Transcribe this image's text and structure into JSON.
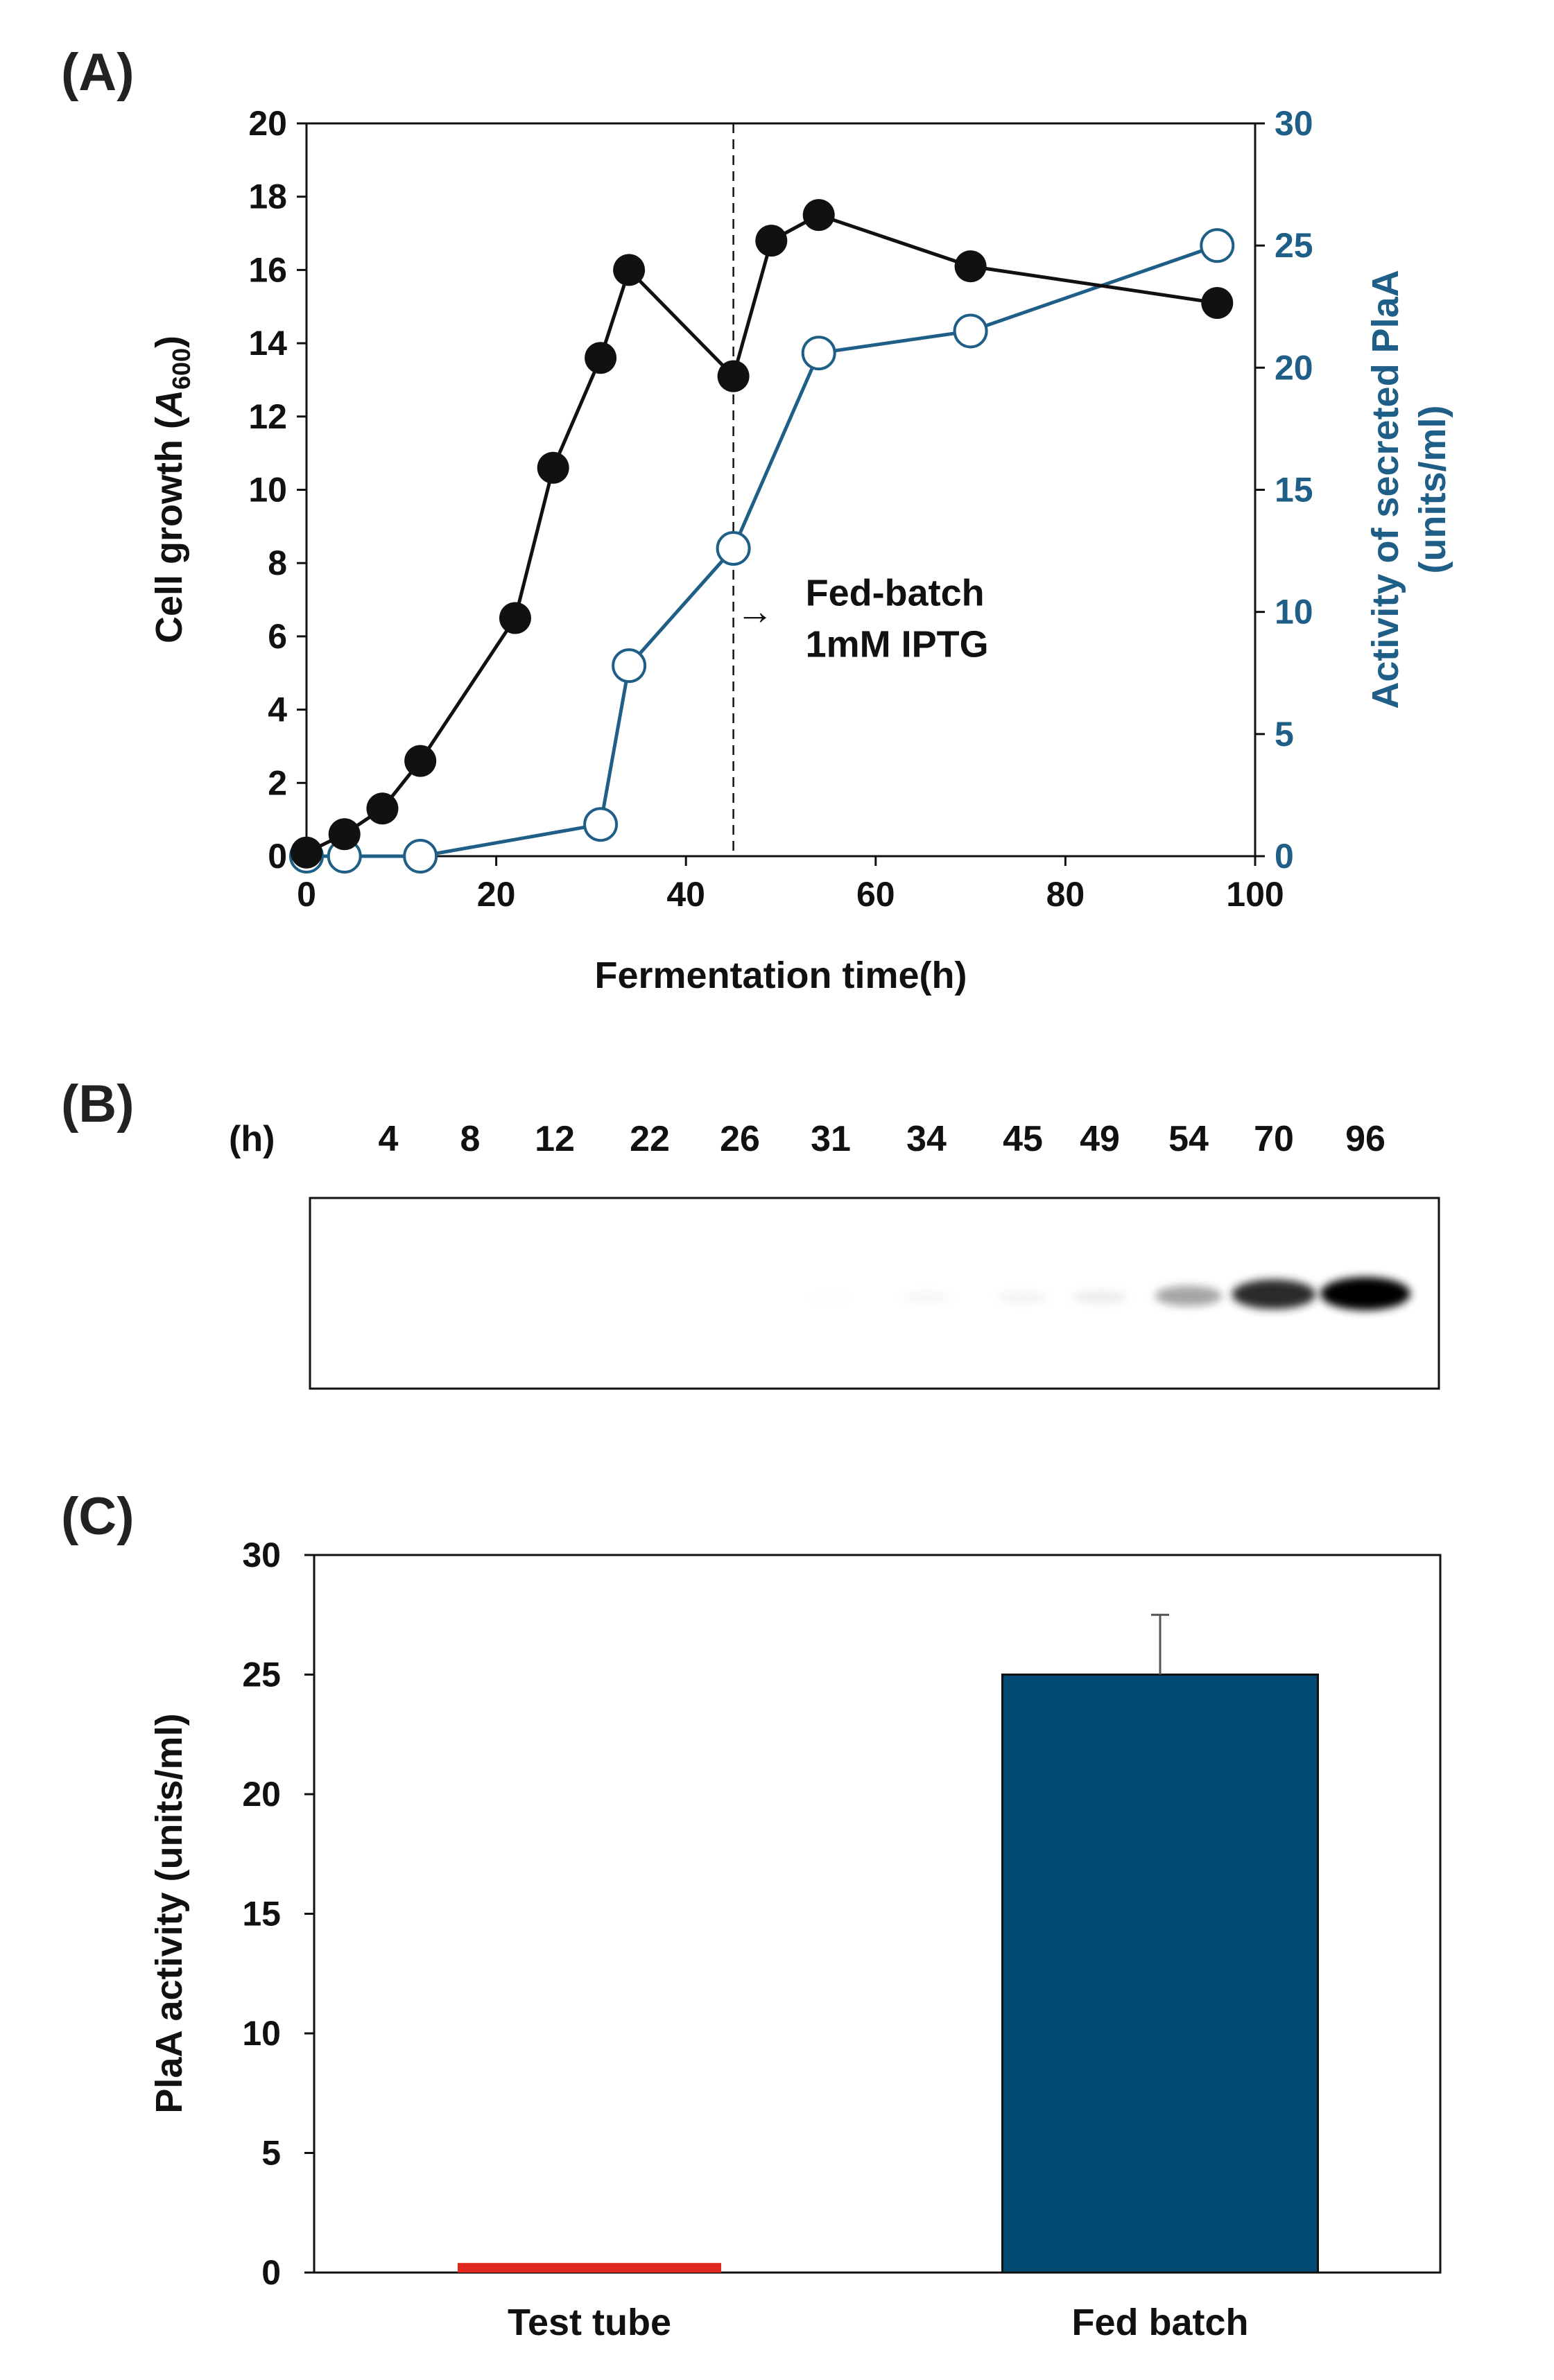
{
  "panels": {
    "a": "(A)",
    "b": "(B)",
    "c": "(C)"
  },
  "colors": {
    "growth": "#111111",
    "activity": "#1f5f87",
    "bar_fed": "#034a75",
    "bar_test": "#e0281e"
  },
  "chart_data": [
    {
      "type": "line",
      "panel": "(A)",
      "title": "",
      "xlabel": "Fermentation time(h)",
      "ylabel_left": "Cell growth (A600)",
      "ylabel_left_parts": {
        "main": "Cell growth (",
        "italic": "A",
        "sub": "600",
        "end": ")"
      },
      "ylabel_right_line1": "Activity of secreted PlaA",
      "ylabel_right_line2": "(units/ml)",
      "xlim": [
        0,
        100
      ],
      "ylim_left": [
        0,
        20
      ],
      "ylim_right": [
        0,
        30
      ],
      "xticks": [
        0,
        20,
        40,
        60,
        80,
        100
      ],
      "yticks_left": [
        0,
        2,
        4,
        6,
        8,
        10,
        12,
        14,
        16,
        18,
        20
      ],
      "yticks_right": [
        0,
        5,
        10,
        15,
        20,
        25,
        30
      ],
      "series": [
        {
          "name": "Cell growth (A600)",
          "axis": "left",
          "marker": "filled-circle",
          "x": [
            0,
            4,
            8,
            12,
            22,
            26,
            31,
            34,
            45,
            49,
            54,
            70,
            96
          ],
          "y": [
            0.1,
            0.6,
            1.3,
            2.6,
            6.5,
            10.6,
            13.6,
            16.0,
            13.1,
            16.8,
            17.5,
            16.1,
            15.1
          ]
        },
        {
          "name": "Activity of secreted PlaA (units/ml)",
          "axis": "right",
          "marker": "open-circle",
          "x": [
            0,
            4,
            12,
            31,
            34,
            45,
            54,
            70,
            96
          ],
          "y": [
            0,
            0,
            0,
            1.3,
            7.8,
            12.6,
            20.6,
            21.5,
            25.0
          ]
        }
      ],
      "annotation": {
        "x": 45,
        "line1": "Fed-batch",
        "line2": "1mM IPTG",
        "arrow": "→"
      }
    },
    {
      "type": "table",
      "panel": "(B)",
      "unit_label": "(h)",
      "lanes": [
        "4",
        "8",
        "12",
        "22",
        "26",
        "31",
        "34",
        "45",
        "49",
        "54",
        "70",
        "96"
      ],
      "band_intensity": [
        0,
        0,
        0,
        0,
        0,
        0.02,
        0.08,
        0.1,
        0.15,
        0.45,
        0.85,
        1.0
      ]
    },
    {
      "type": "bar",
      "panel": "(C)",
      "title": "",
      "xlabel": "",
      "ylabel": "PlaA activity (units/ml)",
      "categories": [
        "Test tube",
        "Fed batch"
      ],
      "values": [
        0.4,
        25.0
      ],
      "errors": [
        0,
        2.5
      ],
      "ylim": [
        0,
        30
      ],
      "yticks": [
        0,
        5,
        10,
        15,
        20,
        25,
        30
      ]
    }
  ]
}
